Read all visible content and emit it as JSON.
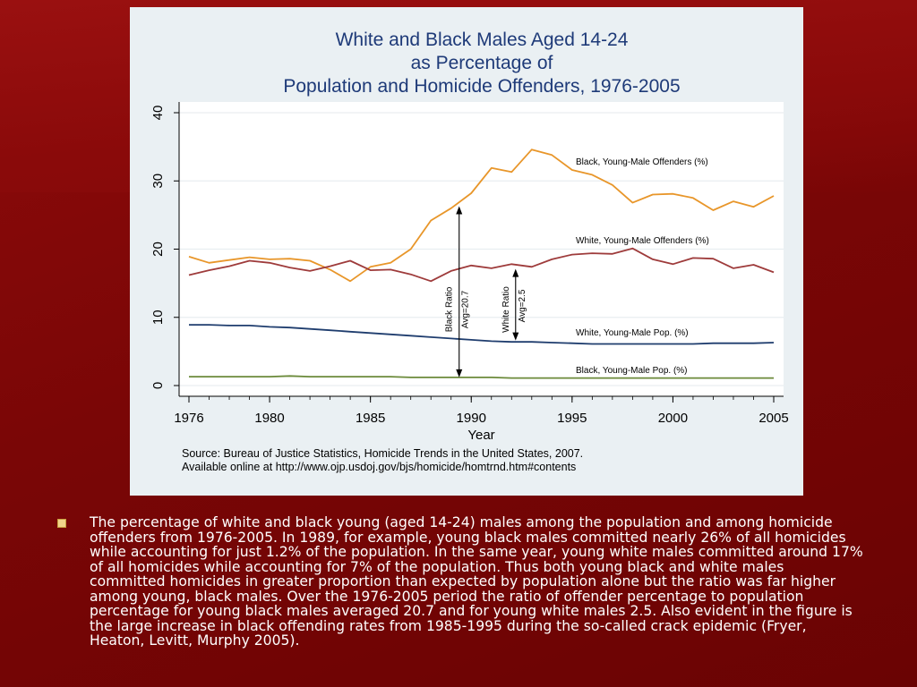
{
  "slide": {
    "bullet_text": "The percentage of white and black young (aged 14-24) males among the population and among homicide offenders from 1976-2005.  In 1989, for example, young black males committed nearly 26% of all homicides while accounting for just 1.2% of the population.  In the same year, young white males committed around 17% of all homicides while accounting for 7% of the population.  Thus both young black and white males committed homicides in greater proportion than expected by population alone but the ratio was far higher among young, black males.  Over the 1976-2005 period the ratio of offender percentage to population percentage for young black males averaged 20.7 and for young white males 2.5.  Also evident in the figure is the large increase in black offending rates from 1985-1995 during the so-called crack epidemic (Fryer, Heaton, Levitt, Murphy 2005)."
  },
  "chart_data": {
    "type": "line",
    "title_lines": [
      "White and Black Males Aged 14-24",
      "as Percentage of",
      "Population and Homicide Offenders, 1976-2005"
    ],
    "xlabel": "Year",
    "ylabel": "",
    "xlim": [
      1976,
      2005
    ],
    "ylim": [
      0,
      40
    ],
    "x_ticks": [
      1976,
      1980,
      1985,
      1990,
      1995,
      2000,
      2005
    ],
    "y_ticks": [
      0,
      10,
      20,
      30,
      40
    ],
    "grid": true,
    "x": [
      1976,
      1977,
      1978,
      1979,
      1980,
      1981,
      1982,
      1983,
      1984,
      1985,
      1986,
      1987,
      1988,
      1989,
      1990,
      1991,
      1992,
      1993,
      1994,
      1995,
      1996,
      1997,
      1998,
      1999,
      2000,
      2001,
      2002,
      2003,
      2004,
      2005
    ],
    "series": [
      {
        "label": "Black, Young-Male Offenders (%)",
        "color": "#e8962a",
        "values": [
          18.9,
          18.0,
          18.4,
          18.8,
          18.5,
          18.6,
          18.3,
          17.0,
          15.3,
          17.4,
          18.0,
          20.0,
          24.2,
          26.0,
          28.2,
          31.9,
          31.3,
          34.6,
          33.8,
          31.6,
          30.9,
          29.4,
          26.8,
          28.0,
          28.1,
          27.5,
          25.7,
          27.0,
          26.2,
          27.8
        ]
      },
      {
        "label": "White, Young-Male Offenders (%)",
        "color": "#9e3b3b",
        "values": [
          16.2,
          16.9,
          17.5,
          18.3,
          18.0,
          17.3,
          16.8,
          17.5,
          18.3,
          16.9,
          17.0,
          16.3,
          15.3,
          16.8,
          17.6,
          17.2,
          17.8,
          17.4,
          18.5,
          19.2,
          19.4,
          19.3,
          20.1,
          18.5,
          17.8,
          18.7,
          18.6,
          17.2,
          17.7,
          16.6
        ]
      },
      {
        "label": "White, Young-Male Pop. (%)",
        "color": "#1f3d6e",
        "values": [
          8.9,
          8.9,
          8.8,
          8.8,
          8.6,
          8.5,
          8.3,
          8.1,
          7.9,
          7.7,
          7.5,
          7.3,
          7.1,
          6.9,
          6.7,
          6.5,
          6.4,
          6.4,
          6.3,
          6.2,
          6.1,
          6.1,
          6.1,
          6.1,
          6.1,
          6.1,
          6.2,
          6.2,
          6.2,
          6.3
        ]
      },
      {
        "label": "Black, Young-Male Pop. (%)",
        "color": "#6b8a3a",
        "values": [
          1.3,
          1.3,
          1.3,
          1.3,
          1.3,
          1.4,
          1.3,
          1.3,
          1.3,
          1.3,
          1.3,
          1.2,
          1.2,
          1.2,
          1.2,
          1.2,
          1.1,
          1.1,
          1.1,
          1.1,
          1.1,
          1.1,
          1.1,
          1.1,
          1.1,
          1.1,
          1.1,
          1.1,
          1.1,
          1.1
        ]
      }
    ],
    "annotations": {
      "black_ratio": {
        "label": "Black Ratio",
        "avg": "Avg=20.7",
        "x": 1989.4,
        "y_from": 1.2,
        "y_to": 26.3
      },
      "white_ratio": {
        "label": "White Ratio",
        "avg": "Avg=2.5",
        "x": 1992.2,
        "y_from": 6.6,
        "y_to": 17.1
      }
    },
    "source_line1": "Source: Bureau of Justice Statistics,  Homicide Trends in the United States, 2007.",
    "source_line2": "Available online at http://www.ojp.usdoj.gov/bjs/homicide/homtrnd.htm#contents"
  }
}
